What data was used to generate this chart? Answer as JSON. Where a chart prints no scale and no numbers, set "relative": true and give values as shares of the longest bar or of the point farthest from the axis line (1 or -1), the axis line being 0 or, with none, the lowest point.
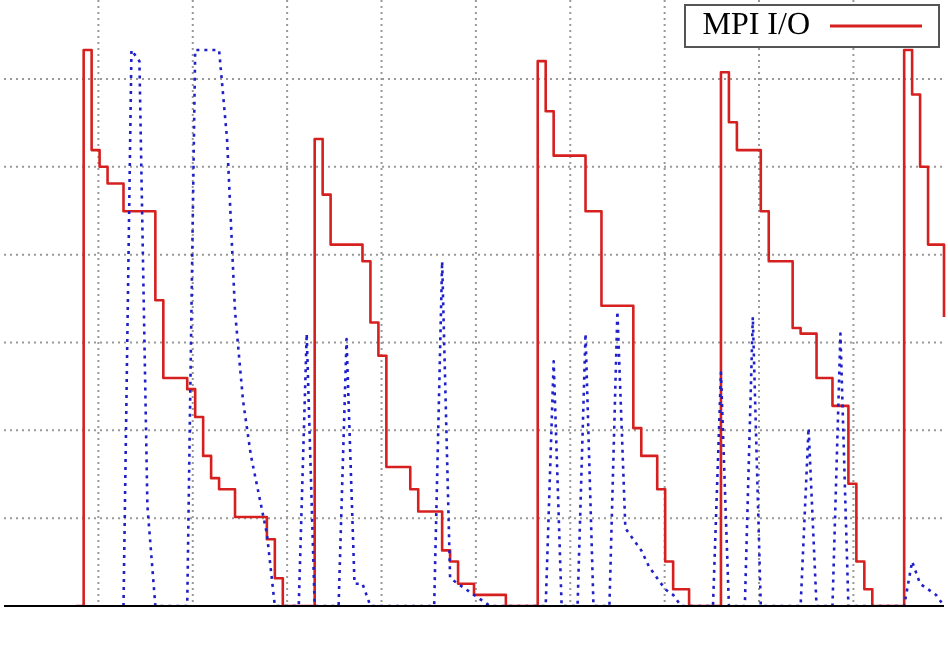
{
  "chart_data": {
    "type": "step",
    "relative": true,
    "grid": true,
    "legend": "top right",
    "marker": "none",
    "categories": [
      null,
      null,
      null,
      null,
      null,
      null,
      null,
      null,
      null,
      null,
      null,
      null,
      null,
      null,
      null,
      null,
      null,
      null,
      null,
      null,
      null,
      null,
      null,
      null,
      null,
      null,
      null,
      null,
      null,
      null,
      null,
      null,
      null,
      null,
      null,
      null,
      null,
      null,
      null,
      null,
      null,
      null,
      null,
      null,
      null,
      null,
      null,
      null,
      null,
      null,
      null,
      null,
      null,
      null,
      null,
      null,
      null,
      null,
      null,
      null,
      null,
      null,
      null,
      null,
      null,
      null,
      null,
      null,
      null,
      null,
      null,
      null,
      null,
      null,
      null,
      null,
      null,
      null,
      null,
      null,
      null,
      null,
      null,
      null,
      null,
      null,
      null,
      null,
      null,
      null,
      null,
      null,
      null,
      null,
      null,
      null,
      null,
      null,
      null,
      null,
      null,
      null,
      null,
      null,
      null,
      null,
      null,
      null,
      null,
      null,
      null,
      null,
      null,
      null,
      null,
      null,
      null,
      null,
      null
    ],
    "series": [
      {
        "name": "MPI I/O",
        "color": "#d62020",
        "line_style": "solid",
        "values": [
          null,
          null,
          null,
          null,
          null,
          null,
          null,
          null,
          null,
          0,
          1.0,
          0.82,
          0.79,
          0.76,
          0.76,
          0.71,
          0.71,
          0.71,
          0.71,
          0.55,
          0.41,
          0.41,
          0.41,
          0.39,
          0.34,
          0.27,
          0.23,
          0.21,
          0.21,
          0.16,
          0.16,
          0.16,
          0.16,
          0.12,
          0.05,
          0,
          0,
          0,
          0,
          0.84,
          0.74,
          0.65,
          0.65,
          0.65,
          0.65,
          0.62,
          0.51,
          0.45,
          0.25,
          0.25,
          0.25,
          0.21,
          0.17,
          0.17,
          0.17,
          0.1,
          0.08,
          0.04,
          0.04,
          0.02,
          0.02,
          0.02,
          0.02,
          0,
          0,
          0,
          0,
          0.98,
          0.89,
          0.81,
          0.81,
          0.81,
          0.81,
          0.71,
          0.71,
          0.54,
          0.54,
          0.54,
          0.54,
          0.32,
          0.27,
          0.27,
          0.21,
          0.08,
          0.03,
          0.03,
          0,
          0,
          0,
          0,
          0.96,
          0.87,
          0.82,
          0.82,
          0.82,
          0.71,
          0.62,
          0.62,
          0.62,
          0.5,
          0.49,
          0.49,
          0.41,
          0.41,
          0.36,
          0.36,
          0.22,
          0.08,
          0.03,
          0,
          0,
          0,
          0,
          1.0,
          0.92,
          0.79,
          0.65,
          0.65,
          0.52
        ]
      },
      {
        "type": "line",
        "color": "#2020c8",
        "line_style": "dotted",
        "values": [
          null,
          null,
          null,
          null,
          null,
          null,
          null,
          null,
          null,
          null,
          null,
          null,
          null,
          null,
          null,
          0,
          1.0,
          0.98,
          0.18,
          0,
          0,
          0,
          0,
          0,
          1.0,
          1.0,
          1.0,
          1.0,
          0.84,
          0.53,
          0.37,
          0.27,
          0.2,
          0.13,
          0,
          0,
          0,
          0,
          0.49,
          0,
          0,
          0,
          0,
          0.48,
          0.04,
          0.04,
          0,
          0,
          0,
          0,
          0,
          0,
          0,
          0,
          0,
          0.62,
          0.05,
          0.04,
          0.03,
          0.02,
          0.01,
          0,
          0,
          0,
          0,
          0,
          0,
          0,
          0,
          0.44,
          0,
          0,
          0,
          0.49,
          0,
          0,
          0,
          0.53,
          0.14,
          0.12,
          0.1,
          0.07,
          0.05,
          0.03,
          0.02,
          0,
          0,
          0,
          0,
          0,
          0.42,
          0,
          0,
          0,
          0.52,
          0,
          0,
          0,
          0,
          0,
          0,
          0.32,
          0,
          0,
          0,
          0.49,
          0,
          0,
          0,
          0,
          0,
          0,
          0,
          0,
          0.08,
          0.04,
          0.03,
          0.02,
          0
        ]
      }
    ]
  }
}
